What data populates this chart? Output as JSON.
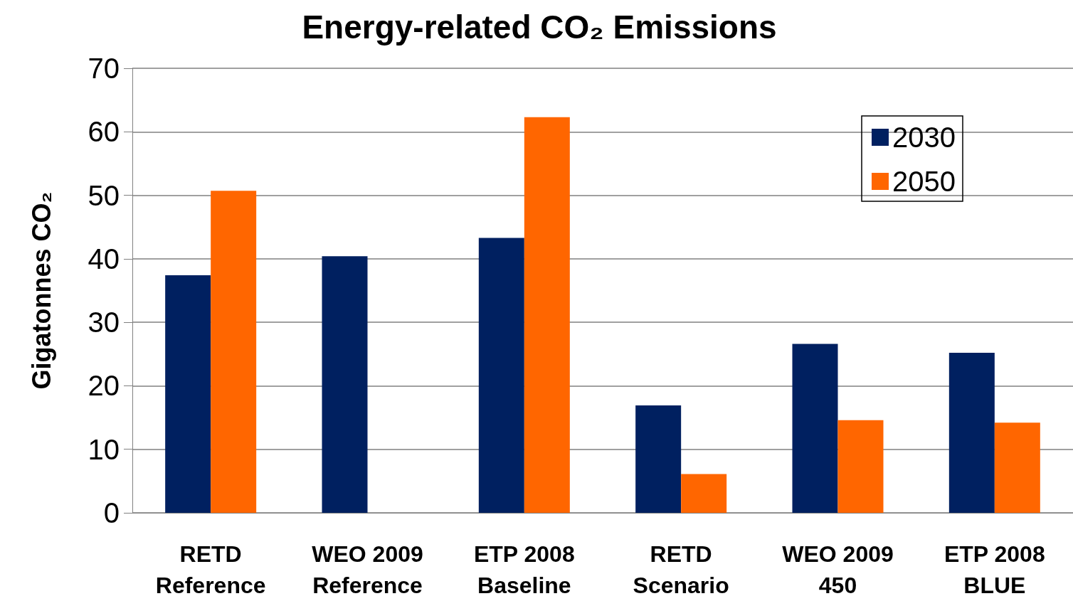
{
  "chart_data": {
    "type": "bar",
    "title": "Energy-related CO₂ Emissions",
    "ylabel": "Gigatonnes CO₂",
    "categories": [
      "RETD\nReference",
      "WEO 2009\nReference",
      "ETP 2008\nBaseline",
      "RETD\nScenario",
      "WEO 2009\n450",
      "ETP 2008\nBLUE"
    ],
    "series": [
      {
        "name": "2030",
        "color": "#002060",
        "values": [
          37.4,
          40.4,
          43.3,
          16.9,
          26.6,
          25.2
        ]
      },
      {
        "name": "2050",
        "color": "#ff6600",
        "values": [
          50.7,
          null,
          62.3,
          6.1,
          14.6,
          14.2
        ]
      }
    ],
    "ylim": [
      0,
      70
    ],
    "yticks": [
      0,
      10,
      20,
      30,
      40,
      50,
      60,
      70
    ],
    "grid": "y",
    "legend": "top right"
  }
}
